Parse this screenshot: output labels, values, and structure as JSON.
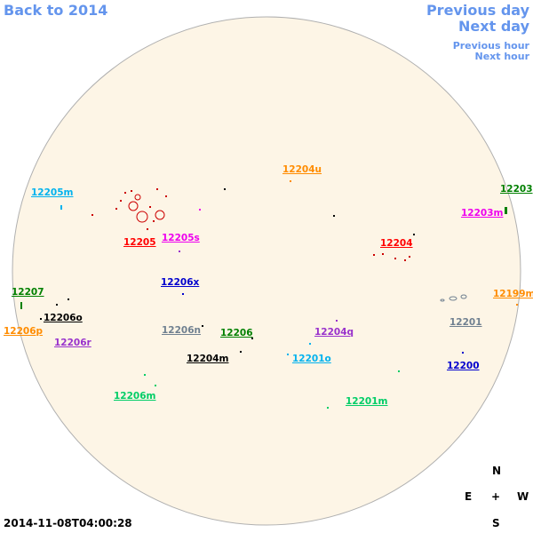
{
  "navigation": {
    "back": "Back to 2014",
    "previous_day": "Previous day",
    "next_day": "Next day",
    "previous_hour": "Previous hour",
    "next_hour": "Next hour"
  },
  "regions": [
    {
      "label": "12204u",
      "color": "#ff8c00"
    },
    {
      "label": "12205m",
      "color": "#00b2ee"
    },
    {
      "label": "12203",
      "color": "#008000"
    },
    {
      "label": "12203m",
      "color": "#ee00ee"
    },
    {
      "label": "12205",
      "color": "#ff0000"
    },
    {
      "label": "12205s",
      "color": "#ee00ee"
    },
    {
      "label": "12204",
      "color": "#ff0000"
    },
    {
      "label": "12206x",
      "color": "#0000cd"
    },
    {
      "label": "12207",
      "color": "#008000"
    },
    {
      "label": "12199m",
      "color": "#ff8c00"
    },
    {
      "label": "12206o",
      "color": "#000000"
    },
    {
      "label": "12201",
      "color": "#708090"
    },
    {
      "label": "12206p",
      "color": "#ff8c00"
    },
    {
      "label": "12206n",
      "color": "#708090"
    },
    {
      "label": "12206",
      "color": "#008000"
    },
    {
      "label": "12204q",
      "color": "#9932cc"
    },
    {
      "label": "12206r",
      "color": "#9932cc"
    },
    {
      "label": "12204m",
      "color": "#000000"
    },
    {
      "label": "12201o",
      "color": "#00b2ee"
    },
    {
      "label": "12200",
      "color": "#0000cd"
    },
    {
      "label": "12206m",
      "color": "#00cd66"
    },
    {
      "label": "12201m",
      "color": "#00cd66"
    }
  ],
  "timestamp": "2014-11-08T04:00:28",
  "compass": {
    "north": "N",
    "east": "E",
    "center": "+",
    "west": "W",
    "south": "S"
  }
}
